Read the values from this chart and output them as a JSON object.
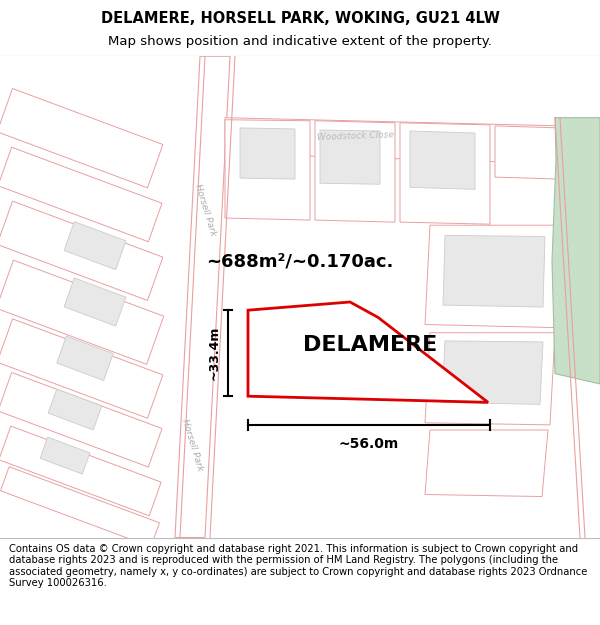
{
  "title": "DELAMERE, HORSELL PARK, WOKING, GU21 4LW",
  "subtitle": "Map shows position and indicative extent of the property.",
  "property_label": "DELAMERE",
  "area_label": "~688m²/~0.170ac.",
  "width_label": "~56.0m",
  "height_label": "~33.4m",
  "footer": "Contains OS data © Crown copyright and database right 2021. This information is subject to Crown copyright and database rights 2023 and is reproduced with the permission of HM Land Registry. The polygons (including the associated geometry, namely x, y co-ordinates) are subject to Crown copyright and database rights 2023 Ordnance Survey 100026316.",
  "map_bg": "#f5f0ef",
  "plot_fill": "#ffffff",
  "plot_edge": "#dd0000",
  "bldg_fill": "#e8e8e8",
  "bldg_edge": "#cccccc",
  "road_fill": "#ffffff",
  "parcel_edge": "#e8a0a0",
  "green_fill": "#c8dfc8",
  "green_edge": "#a0c0a0",
  "title_fontsize": 10.5,
  "subtitle_fontsize": 9.5,
  "footer_fontsize": 7.2,
  "label_fontsize": 6.5
}
